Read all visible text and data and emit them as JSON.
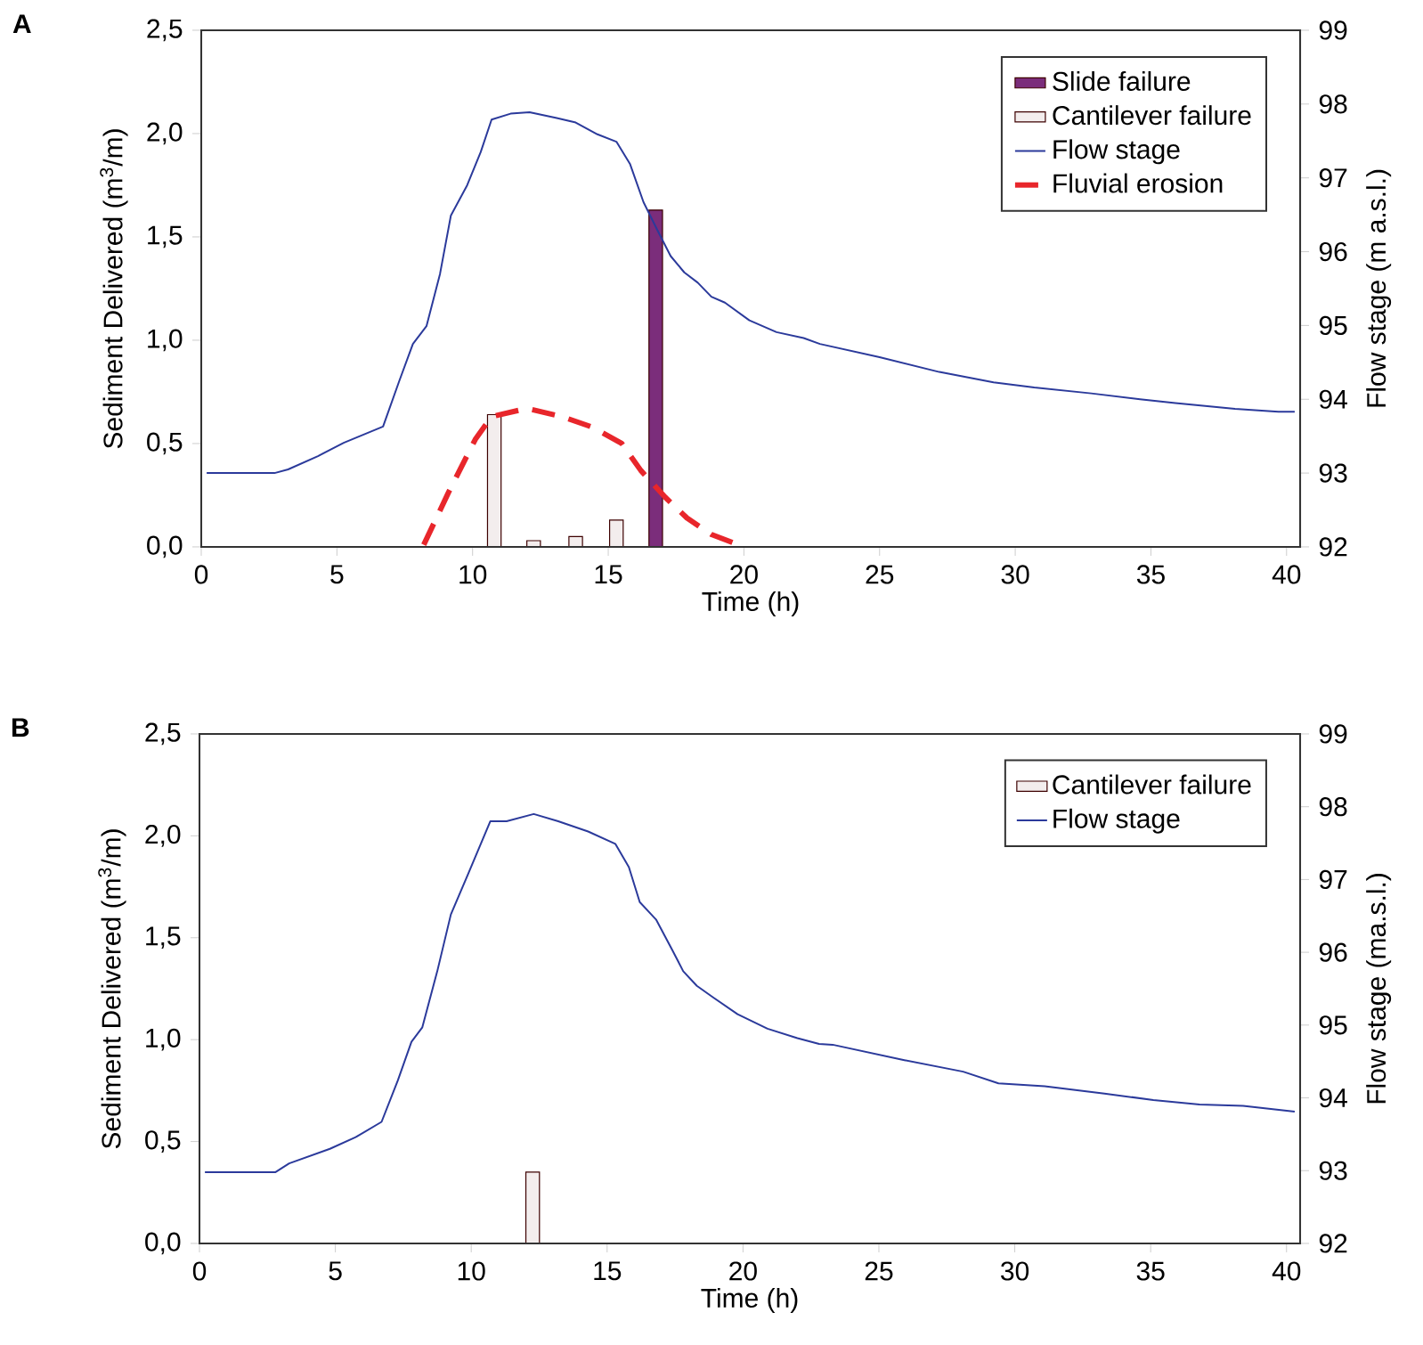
{
  "chart_data": [
    {
      "type": "bar",
      "title": "A",
      "xlabel": "Time (h)",
      "ylabel": "Sediment Delivered (m$^{3}$/m)",
      "y2label": "Flow stage (m a.s.l.)",
      "xlim": [
        0,
        40.5
      ],
      "ylim": [
        0,
        2.5
      ],
      "y2lim": [
        92,
        99
      ],
      "xticks": [
        0,
        5,
        10,
        15,
        20,
        25,
        30,
        35,
        40
      ],
      "yticks": [
        {
          "value": 0,
          "label": "0,0"
        },
        {
          "value": 0.5,
          "label": "0,5"
        },
        {
          "value": 1,
          "label": "1,0"
        },
        {
          "value": 1.5,
          "label": "1,5"
        },
        {
          "value": 2,
          "label": "2,0"
        },
        {
          "value": 2.5,
          "label": "2,5"
        }
      ],
      "y2ticks": [
        92,
        93,
        94,
        95,
        96,
        97,
        98,
        99
      ],
      "legend": "top right",
      "series": [
        {
          "name": "Slide failure",
          "type": "bar",
          "color": "#7b2d7b",
          "x": [
            16.75
          ],
          "values": [
            1.63
          ]
        },
        {
          "name": "Cantilever failure",
          "type": "bar",
          "color": "#f3eded",
          "x": [
            10.8,
            12.25,
            13.8,
            15.3
          ],
          "values": [
            0.64,
            0.03,
            0.05,
            0.13
          ]
        },
        {
          "name": "Flow stage",
          "type": "line",
          "axis": "y2",
          "color": "#2b3a9b",
          "line_style": "solid",
          "x": [
            0.2,
            2.7,
            3.2,
            4.3,
            5.25,
            6.7,
            7.3,
            7.8,
            8.3,
            8.8,
            9.2,
            9.8,
            10.3,
            10.7,
            11.4,
            12.1,
            13.1,
            13.8,
            14.6,
            15.3,
            15.8,
            16.3,
            16.8,
            17.3,
            17.8,
            18.3,
            18.8,
            19.3,
            20.2,
            21.2,
            22.2,
            22.8,
            25.0,
            27.2,
            29.2,
            30.7,
            32.8,
            34.6,
            35.9,
            38.1,
            39.7,
            40.3
          ],
          "values": [
            93.0,
            93.0,
            93.05,
            93.23,
            93.41,
            93.63,
            94.25,
            94.75,
            94.99,
            95.7,
            96.49,
            96.9,
            97.35,
            97.79,
            97.87,
            97.89,
            97.81,
            97.75,
            97.59,
            97.49,
            97.19,
            96.67,
            96.3,
            95.94,
            95.72,
            95.58,
            95.39,
            95.31,
            95.07,
            94.91,
            94.83,
            94.75,
            94.57,
            94.37,
            94.23,
            94.16,
            94.08,
            94.0,
            93.95,
            93.87,
            93.83,
            93.83
          ]
        },
        {
          "name": "Fluvial erosion",
          "type": "line",
          "color": "#e8262b",
          "line_style": "dashed",
          "x": [
            8.2,
            9.1,
            10.1,
            10.7,
            12.0,
            13.3,
            14.4,
            15.5,
            16.2,
            17.1,
            17.9,
            18.8,
            19.8
          ],
          "values": [
            0.01,
            0.26,
            0.52,
            0.63,
            0.67,
            0.63,
            0.58,
            0.5,
            0.37,
            0.24,
            0.14,
            0.06,
            0.01
          ]
        }
      ]
    },
    {
      "type": "bar",
      "title": "B",
      "xlabel": "Time (h)",
      "ylabel": "Sediment Delivered (m$^{3}$/m)",
      "y2label": "Flow stage (ma.s.l.)",
      "xlim": [
        0,
        40.5
      ],
      "ylim": [
        0,
        2.5
      ],
      "y2lim": [
        92,
        99
      ],
      "xticks": [
        0,
        5,
        10,
        15,
        20,
        25,
        30,
        35,
        40
      ],
      "yticks": [
        {
          "value": 0,
          "label": "0,0"
        },
        {
          "value": 0.5,
          "label": "0,5"
        },
        {
          "value": 1,
          "label": "1,0"
        },
        {
          "value": 1.5,
          "label": "1,5"
        },
        {
          "value": 2,
          "label": "2,0"
        },
        {
          "value": 2.5,
          "label": "2,5"
        }
      ],
      "y2ticks": [
        92,
        93,
        94,
        95,
        96,
        97,
        98,
        99
      ],
      "legend": "top right",
      "series": [
        {
          "name": "Cantilever failure",
          "type": "bar",
          "color": "#f3eded",
          "x": [
            12.26
          ],
          "values": [
            0.35
          ]
        },
        {
          "name": "Flow stage",
          "type": "line",
          "axis": "y2",
          "color": "#2b3a9b",
          "line_style": "solid",
          "x": [
            0.2,
            2.8,
            3.3,
            4.8,
            5.75,
            6.7,
            7.3,
            7.8,
            8.2,
            8.75,
            9.25,
            9.9,
            10.7,
            11.3,
            12.3,
            13.2,
            14.3,
            15.3,
            15.8,
            16.2,
            16.8,
            17.4,
            17.8,
            18.3,
            18.9,
            19.8,
            20.9,
            22.0,
            22.8,
            23.3,
            25.9,
            28.1,
            29.4,
            31.1,
            33.3,
            35.1,
            36.8,
            38.4,
            40.3
          ],
          "values": [
            92.98,
            92.98,
            93.1,
            93.3,
            93.46,
            93.67,
            94.24,
            94.77,
            94.97,
            95.74,
            96.52,
            97.09,
            97.8,
            97.8,
            97.9,
            97.8,
            97.66,
            97.49,
            97.17,
            96.69,
            96.45,
            96.03,
            95.74,
            95.54,
            95.38,
            95.15,
            94.95,
            94.82,
            94.74,
            94.73,
            94.52,
            94.36,
            94.2,
            94.16,
            94.06,
            93.97,
            93.91,
            93.89,
            93.81
          ]
        }
      ]
    }
  ]
}
